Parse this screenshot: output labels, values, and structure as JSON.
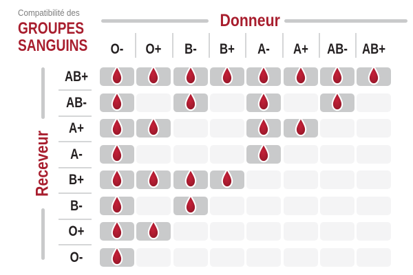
{
  "title": {
    "subtitle": "Compatibilité des",
    "line1": "GROUPES",
    "line2": "SANGUINS"
  },
  "axes": {
    "donor": "Donneur",
    "receiver": "Receveur"
  },
  "chart_data": {
    "type": "heatmap",
    "title": "Compatibilité des groupes sanguins",
    "x_axis_label": "Donneur",
    "y_axis_label": "Receveur",
    "columns": [
      "O-",
      "O+",
      "B-",
      "B+",
      "A-",
      "A+",
      "AB-",
      "AB+"
    ],
    "rows": [
      "AB+",
      "AB-",
      "A+",
      "A-",
      "B+",
      "B-",
      "O+",
      "O-"
    ],
    "values": [
      [
        1,
        1,
        1,
        1,
        1,
        1,
        1,
        1
      ],
      [
        1,
        0,
        1,
        0,
        1,
        0,
        1,
        0
      ],
      [
        1,
        1,
        0,
        0,
        1,
        1,
        0,
        0
      ],
      [
        1,
        0,
        0,
        0,
        1,
        0,
        0,
        0
      ],
      [
        1,
        1,
        1,
        1,
        0,
        0,
        0,
        0
      ],
      [
        1,
        0,
        1,
        0,
        0,
        0,
        0,
        0
      ],
      [
        1,
        1,
        0,
        0,
        0,
        0,
        0,
        0
      ],
      [
        1,
        0,
        0,
        0,
        0,
        0,
        0,
        0
      ]
    ],
    "marker_icon": "blood-drop-icon",
    "grid": false,
    "legend_position": "none"
  },
  "colors": {
    "accent_red": "#A81E2E",
    "text_dark": "#231F20",
    "subtitle_gray": "#7C7C7C",
    "line_gray": "#C9CACB",
    "cell_active": "#C9CACB",
    "cell_inactive": "#F4F4F5",
    "drop_center": "#C52038",
    "drop_edge": "#8F1526",
    "background": "#FFFFFF"
  }
}
